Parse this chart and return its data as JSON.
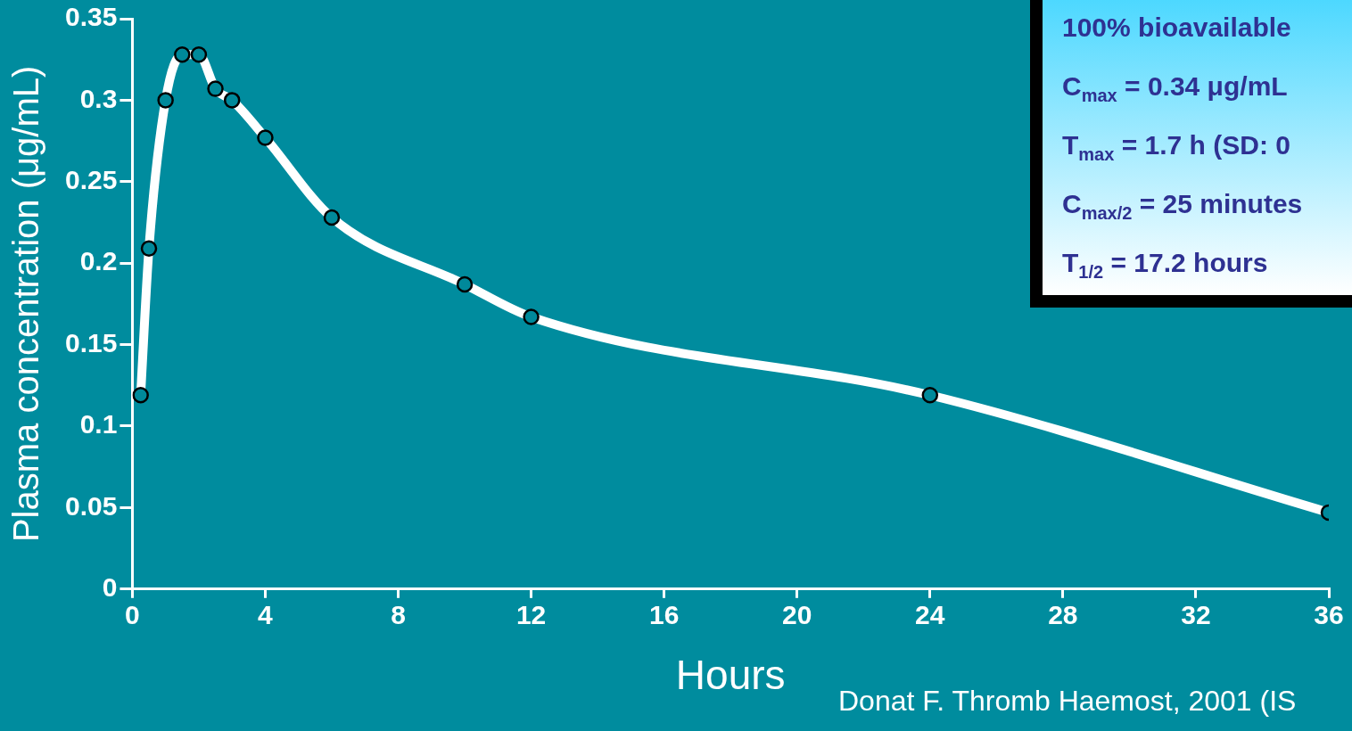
{
  "chart_data": {
    "type": "line",
    "xlabel": "Hours",
    "ylabel": "Plasma concentration (μg/mL)",
    "x": [
      0.25,
      0.5,
      1,
      1.5,
      2,
      2.5,
      3,
      4,
      6,
      10,
      12,
      24,
      36
    ],
    "series": [
      {
        "color": "#ffffff",
        "values": [
          0.119,
          0.209,
          0.3,
          0.328,
          0.328,
          0.307,
          0.3,
          0.277,
          0.228,
          0.187,
          0.167,
          0.119,
          0.047
        ]
      }
    ],
    "xlim": [
      0,
      36
    ],
    "xticks": [
      0,
      4,
      8,
      12,
      16,
      20,
      24,
      28,
      32,
      36
    ],
    "ylim": [
      0,
      0.35
    ],
    "yticks": [
      0,
      0.05,
      0.1,
      0.15,
      0.2,
      0.25,
      0.3,
      0.35
    ],
    "grid": false,
    "legend": false,
    "marker": "circle",
    "line_style": "solid",
    "annotations": [
      "100% bioavailable",
      "C$_{max}$ = 0.34 μg/mL",
      "T$_{max}$ = 1.7 h (SD: 0",
      "C$_{max/2}$ = 25 minutes",
      "T$_{1/2}$ = 17.2 hours",
      "Donat F. Thromb Haemost, 2001 (IS"
    ]
  }
}
